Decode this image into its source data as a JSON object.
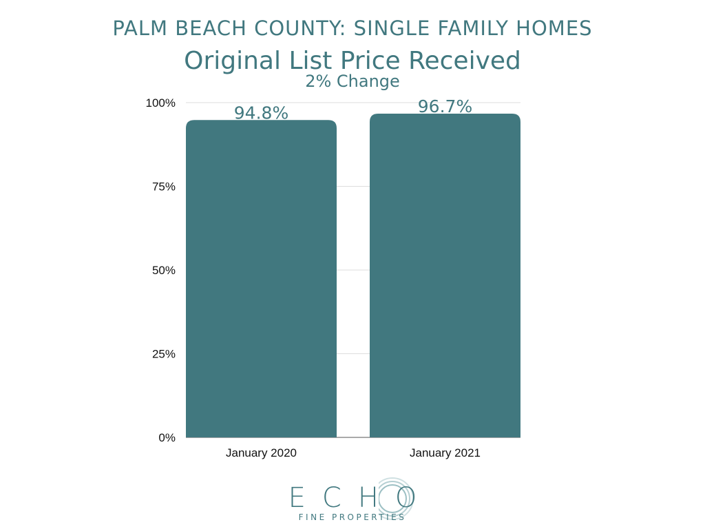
{
  "header": {
    "heading": "PALM BEACH COUNTY: SINGLE FAMILY HOMES"
  },
  "chart_data": {
    "type": "bar",
    "title": "Original List Price Received",
    "subtitle": "2% Change",
    "categories": [
      "January 2020",
      "January 2021"
    ],
    "values": [
      94.8,
      96.7
    ],
    "data_labels": [
      "94.8%",
      "96.7%"
    ],
    "ylim": [
      0,
      100
    ],
    "yticks": [
      0,
      25,
      50,
      75,
      100
    ],
    "ytick_labels": [
      "0%",
      "25%",
      "50%",
      "75%",
      "100%"
    ],
    "xlabel": "",
    "ylabel": "",
    "grid": true,
    "legend": "none",
    "bar_color": "#41787f",
    "grid_color": "#dddddd"
  },
  "logo": {
    "wordmark": "ECHO",
    "tagline": "FINE PROPERTIES",
    "color": "#41787f"
  }
}
